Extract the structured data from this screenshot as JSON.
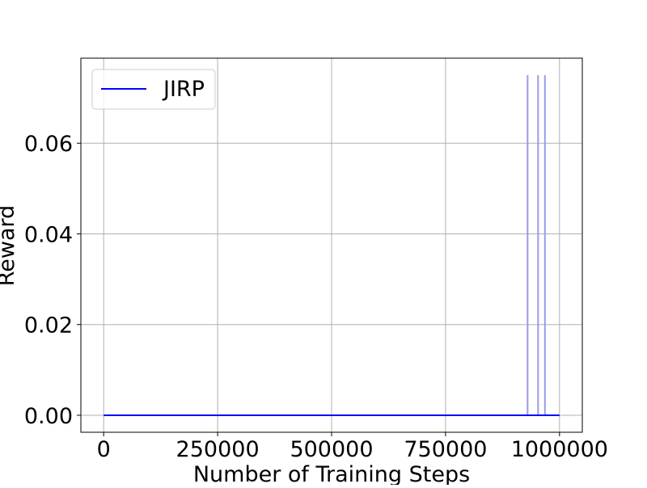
{
  "chart_data": {
    "type": "line",
    "title": "",
    "xlabel": "Number of Training Steps",
    "ylabel": "Reward",
    "xlim": [
      -50000,
      1050000
    ],
    "ylim": [
      -0.00375,
      0.07875
    ],
    "x_ticks": [
      0,
      250000,
      500000,
      750000,
      1000000
    ],
    "x_tick_labels": [
      "0",
      "250000",
      "500000",
      "750000",
      "1000000"
    ],
    "y_ticks": [
      0.0,
      0.02,
      0.04,
      0.06
    ],
    "y_tick_labels": [
      "0.00",
      "0.02",
      "0.04",
      "0.06"
    ],
    "grid": true,
    "legend": {
      "placement": "top-left",
      "entries": [
        "JIRP"
      ]
    },
    "series": [
      {
        "name": "JIRP",
        "color": "#0000ff",
        "x_start": 0,
        "x_end": 1000000,
        "baseline": 0.0,
        "spikes": [
          {
            "x": 930000,
            "y": 0.075
          },
          {
            "x": 953000,
            "y": 0.075
          },
          {
            "x": 968000,
            "y": 0.075
          }
        ]
      }
    ]
  },
  "colors": {
    "series": "#0000ff",
    "spike": "#9999ee",
    "grid": "#b0b0b0",
    "axis": "#000000"
  }
}
